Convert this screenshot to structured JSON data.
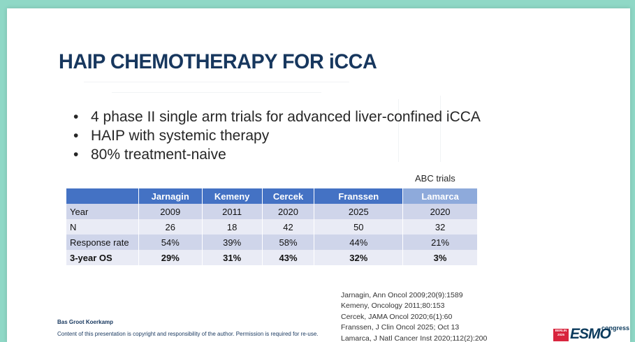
{
  "title": "HAIP CHEMOTHERAPY FOR iCCA",
  "bullets": [
    "4 phase II single arm trials for advanced liver-confined iCCA",
    "HAIP with systemic therapy",
    "80% treatment-naive"
  ],
  "abc_label": "ABC trials",
  "table": {
    "headers": [
      "",
      "Jarnagin",
      "Kemeny",
      "Cercek",
      "Franssen",
      "Lamarca"
    ],
    "rows": [
      {
        "label": "Year",
        "cells": [
          "2009",
          "2011",
          "2020",
          "2025",
          "2020"
        ]
      },
      {
        "label": "N",
        "cells": [
          "26",
          "18",
          "42",
          "50",
          "32"
        ]
      },
      {
        "label": "Response rate",
        "cells": [
          "54%",
          "39%",
          "58%",
          "44%",
          "21%"
        ]
      },
      {
        "label": "3-year OS",
        "cells": [
          "29%",
          "31%",
          "43%",
          "32%",
          "3%"
        ]
      }
    ]
  },
  "references": [
    "Jarnagin, Ann Oncol 2009;20(9):1589",
    "Kemeny, Oncology 2011;80:153",
    "Cercek, JAMA Oncol 2020;6(1):60",
    "Franssen, J Clin Oncol 2025; Oct 13",
    "Lamarca, J Natl Cancer Inst 2020;112(2):200"
  ],
  "footer": {
    "author": "Bas Groot Koerkamp",
    "copyright": "Content of this presentation is copyright and responsibility of the author. Permission is required for re-use.",
    "logo_tag": "BERLIN 2025",
    "logo_main": "ESMO",
    "logo_sub": "congress"
  },
  "colors": {
    "title": "#17375e",
    "table_header": "#4472c4",
    "table_header_highlight": "#8eaadb",
    "row_dark": "#cfd5ea",
    "row_light": "#e9ebf5",
    "frame": "#8fd8c6"
  }
}
